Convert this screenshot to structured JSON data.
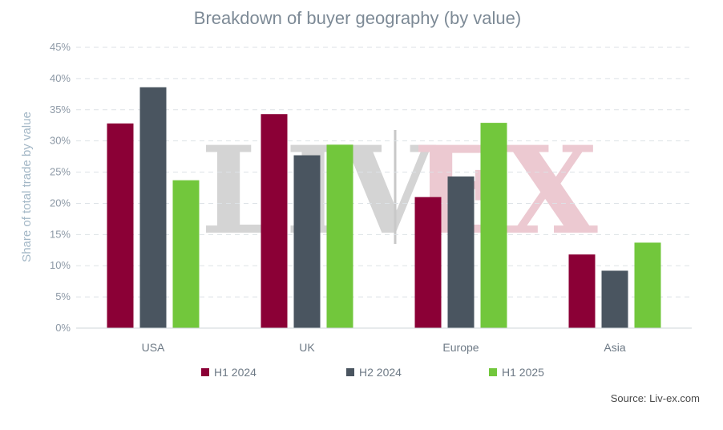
{
  "chart_data": {
    "type": "bar",
    "title": "Breakdown of buyer geography (by value)",
    "ylabel": "Share of total trade by value",
    "xlabel": "",
    "categories": [
      "USA",
      "UK",
      "Europe",
      "Asia"
    ],
    "series": [
      {
        "name": "H1 2024",
        "color": "#8b0036",
        "values": [
          32.8,
          34.3,
          21.0,
          11.8
        ]
      },
      {
        "name": "H2 2024",
        "color": "#4a5560",
        "values": [
          38.6,
          27.7,
          24.3,
          9.2
        ]
      },
      {
        "name": "H1 2025",
        "color": "#72c73c",
        "values": [
          23.7,
          29.4,
          32.9,
          13.7
        ]
      }
    ],
    "ylim": [
      0,
      45
    ],
    "yticks": [
      "0%",
      "5%",
      "10%",
      "15%",
      "20%",
      "25%",
      "30%",
      "35%",
      "40%",
      "45%"
    ],
    "grid": true,
    "legend_position": "bottom"
  },
  "watermark": {
    "left": "LIV",
    "right": "EX"
  },
  "source": "Source: Liv-ex.com"
}
